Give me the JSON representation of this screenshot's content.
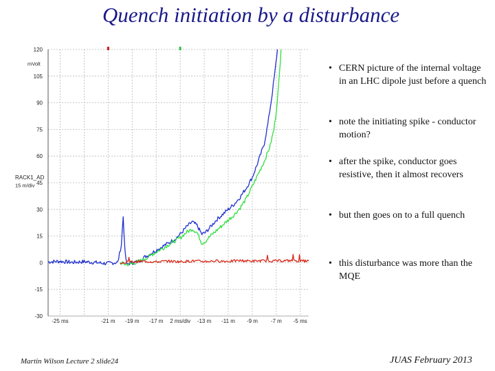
{
  "slide": {
    "title": "Quench initiation by a disturbance",
    "footer_left": "Martin Wilson Lecture 2 slide24",
    "footer_right": "JUAS February 2013"
  },
  "bullets": [
    "CERN picture of the internal voltage in an LHC dipole just before a quench",
    "note the initiating spike - conductor motion?",
    "after the spike, conductor goes resistive, then it almost recovers",
    "but then goes on to a full quench",
    "this disturbance was more than the MQE"
  ],
  "chart_data": {
    "type": "line",
    "y_unit_label": "mVolt",
    "channel_label": "RACK1_AD",
    "channel_scale": "15 m/div",
    "x_scale_label": "2 ms/div",
    "ylim": [
      -30,
      120
    ],
    "xlim": [
      -26,
      -4.3
    ],
    "y_ticks": [
      120,
      105,
      90,
      75,
      60,
      45,
      30,
      15,
      0,
      -15,
      -30
    ],
    "x_ticks": [
      {
        "value": -25,
        "label": "-25 ms"
      },
      {
        "value": -21,
        "label": "-21 m"
      },
      {
        "value": -19,
        "label": "-19 m"
      },
      {
        "value": -17,
        "label": "-17 m"
      },
      {
        "value": -15,
        "label": "2 ms/div"
      },
      {
        "value": -13,
        "label": "-13 m"
      },
      {
        "value": -11,
        "label": "-11 m"
      },
      {
        "value": -9,
        "label": "-9 m"
      },
      {
        "value": -7,
        "label": "-7 m"
      },
      {
        "value": -5,
        "label": "-5 ms"
      }
    ],
    "series": [
      {
        "name": "blue",
        "color": "#1f2fcf",
        "points": [
          [
            -26,
            0.5
          ],
          [
            -25,
            0.8
          ],
          [
            -24,
            0.2
          ],
          [
            -23,
            0.6
          ],
          [
            -22,
            0.1
          ],
          [
            -21.2,
            -0.4
          ],
          [
            -20.2,
            0.2
          ],
          [
            -19.9,
            10
          ],
          [
            -19.75,
            26
          ],
          [
            -19.6,
            6
          ],
          [
            -19.45,
            -1
          ],
          [
            -19.3,
            -0.5
          ],
          [
            -19,
            0
          ],
          [
            -18.6,
            0.5
          ],
          [
            -18.3,
            1.5
          ],
          [
            -18,
            3
          ],
          [
            -17.5,
            5
          ],
          [
            -17,
            7
          ],
          [
            -16.5,
            9
          ],
          [
            -16,
            11
          ],
          [
            -15.5,
            13
          ],
          [
            -15,
            16
          ],
          [
            -14.5,
            20
          ],
          [
            -14,
            23
          ],
          [
            -13.6,
            21
          ],
          [
            -13.2,
            16
          ],
          [
            -12.9,
            17
          ],
          [
            -12.5,
            20
          ],
          [
            -12,
            24
          ],
          [
            -11.5,
            27
          ],
          [
            -11,
            30
          ],
          [
            -10.5,
            33
          ],
          [
            -10,
            37
          ],
          [
            -9.5,
            42
          ],
          [
            -9,
            48
          ],
          [
            -8.5,
            57
          ],
          [
            -8,
            67
          ],
          [
            -7.7,
            78
          ],
          [
            -7.4,
            92
          ],
          [
            -7.1,
            108
          ],
          [
            -6.9,
            120
          ]
        ]
      },
      {
        "name": "green",
        "color": "#2fdf3f",
        "points": [
          [
            -20,
            0
          ],
          [
            -19.5,
            -1
          ],
          [
            -19,
            -0.5
          ],
          [
            -18.5,
            0.5
          ],
          [
            -18,
            2
          ],
          [
            -17.5,
            4
          ],
          [
            -17,
            6
          ],
          [
            -16.5,
            8
          ],
          [
            -16,
            10
          ],
          [
            -15.5,
            12
          ],
          [
            -15,
            14
          ],
          [
            -14.5,
            17
          ],
          [
            -14,
            19
          ],
          [
            -13.6,
            17
          ],
          [
            -13.2,
            11
          ],
          [
            -12.9,
            12
          ],
          [
            -12.5,
            15
          ],
          [
            -12,
            18
          ],
          [
            -11.5,
            21
          ],
          [
            -11,
            24
          ],
          [
            -10.5,
            27
          ],
          [
            -10,
            31
          ],
          [
            -9.5,
            36
          ],
          [
            -9,
            43
          ],
          [
            -8.5,
            50
          ],
          [
            -8,
            57
          ],
          [
            -7.5,
            66
          ],
          [
            -7.2,
            75
          ],
          [
            -7,
            85
          ],
          [
            -6.8,
            100
          ],
          [
            -6.6,
            120
          ]
        ]
      },
      {
        "name": "red",
        "color": "#d82a1a",
        "points": [
          [
            -20,
            0
          ],
          [
            -19,
            0.5
          ],
          [
            -18,
            0.8
          ],
          [
            -17,
            0.5
          ],
          [
            -16,
            0.9
          ],
          [
            -15,
            0.6
          ],
          [
            -14,
            1
          ],
          [
            -13,
            0.7
          ],
          [
            -12,
            1
          ],
          [
            -11,
            0.8
          ],
          [
            -10,
            1.2
          ],
          [
            -9,
            0.9
          ],
          [
            -8,
            1.1
          ],
          [
            -7,
            1
          ],
          [
            -6,
            1.2
          ],
          [
            -5,
            0.9
          ],
          [
            -4.3,
            1
          ]
        ]
      }
    ],
    "markers": [
      {
        "x": -21,
        "color": "#cc1a1a"
      },
      {
        "x": -15,
        "color": "#2fbf3f"
      }
    ]
  }
}
